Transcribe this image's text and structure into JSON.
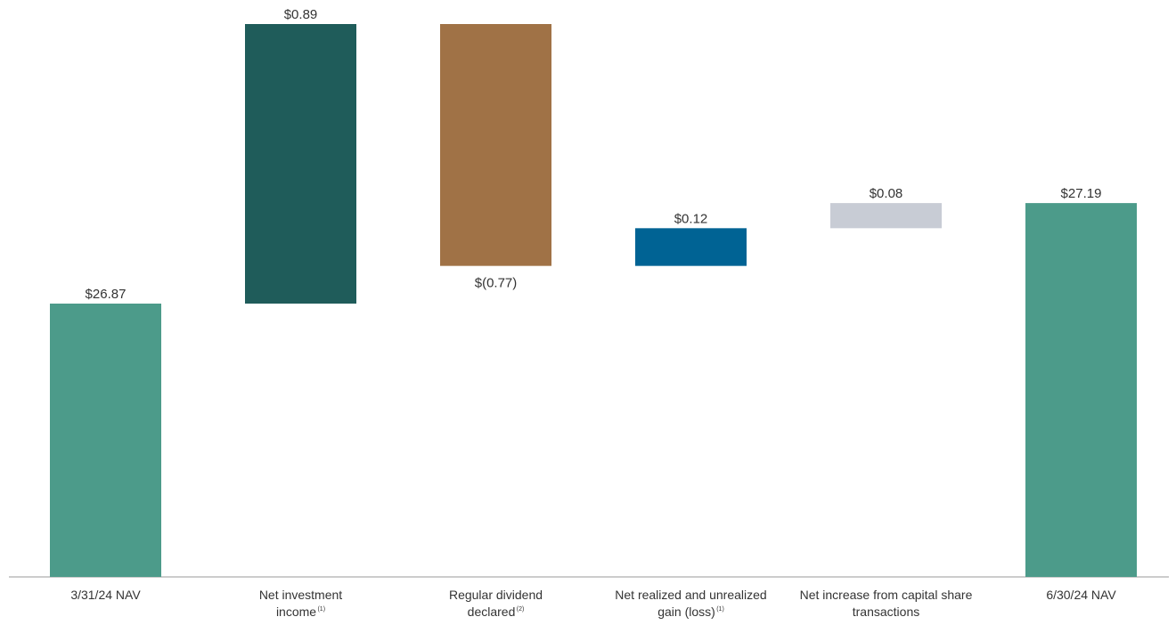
{
  "chart_data": {
    "type": "waterfall",
    "colors": {
      "start": "#4c9b8a",
      "increase_income": "#1f5c5a",
      "decrease_dividend": "#a07246",
      "increase_gain": "#006394",
      "increase_capital": "#c8ccd5",
      "end": "#4c9b8a",
      "axis": "#bbbbbb"
    },
    "bars": [
      {
        "key": "start",
        "value": 26.87,
        "base": 0,
        "label": "$26.87",
        "category": [
          "3/31/24 NAV"
        ],
        "sup": "",
        "color_key": "start",
        "label_pos": "top"
      },
      {
        "key": "nii",
        "value": 0.89,
        "base": 26.87,
        "label": "$0.89",
        "category": [
          "Net investment",
          "income"
        ],
        "sup": "(1)",
        "color_key": "increase_income",
        "label_pos": "top"
      },
      {
        "key": "div",
        "value": -0.77,
        "base": 27.76,
        "label": "$(0.77)",
        "category": [
          "Regular dividend",
          "declared"
        ],
        "sup": "(2)",
        "color_key": "decrease_dividend",
        "label_pos": "bottom"
      },
      {
        "key": "gain",
        "value": 0.12,
        "base": 26.99,
        "label": "$0.12",
        "category": [
          "Net realized and unrealized",
          "gain (loss)"
        ],
        "sup": "(1)",
        "color_key": "increase_gain",
        "label_pos": "top"
      },
      {
        "key": "cap",
        "value": 0.08,
        "base": 27.11,
        "label": "$0.08",
        "category": [
          "Net increase from capital share",
          "transactions"
        ],
        "sup": "",
        "color_key": "increase_capital",
        "label_pos": "top"
      },
      {
        "key": "end",
        "value": 27.19,
        "base": 0,
        "label": "$27.19",
        "category": [
          "6/30/24 NAV"
        ],
        "sup": "",
        "color_key": "end",
        "label_pos": "top"
      }
    ]
  }
}
